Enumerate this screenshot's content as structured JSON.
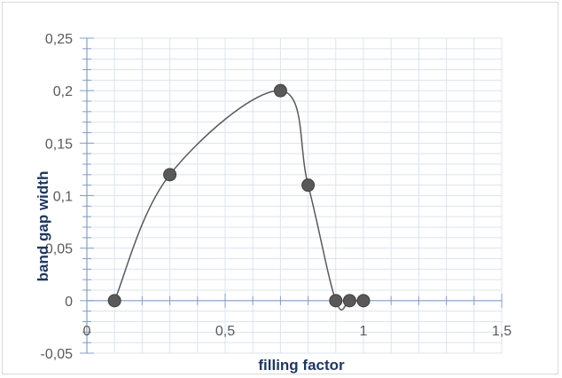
{
  "chart_data": {
    "type": "scatter",
    "title": "",
    "xlabel": "filling factor",
    "ylabel": "band gap  width",
    "xlim": [
      0,
      1.5
    ],
    "ylim": [
      -0.05,
      0.25
    ],
    "x_ticks": [
      0,
      0.5,
      1,
      1.5
    ],
    "x_tick_labels": [
      "0",
      "0,5",
      "1",
      "1,5"
    ],
    "y_ticks": [
      -0.05,
      0,
      0.05,
      0.1,
      0.15,
      0.2,
      0.25
    ],
    "y_tick_labels": [
      "-0,05",
      "0",
      "0,05",
      "0,1",
      "0,15",
      "0,2",
      "0,25"
    ],
    "grid": true,
    "smooth_line": true,
    "series": [
      {
        "x": [
          0.1,
          0.3,
          0.7,
          0.8,
          0.9,
          0.95,
          1.0
        ],
        "y": [
          0,
          0.12,
          0.2,
          0.11,
          0,
          0,
          0
        ]
      }
    ],
    "colors": {
      "marker": "#595959",
      "line": "#595959",
      "grid": "#dbe4f0",
      "axis": "#7f9fcf"
    }
  }
}
